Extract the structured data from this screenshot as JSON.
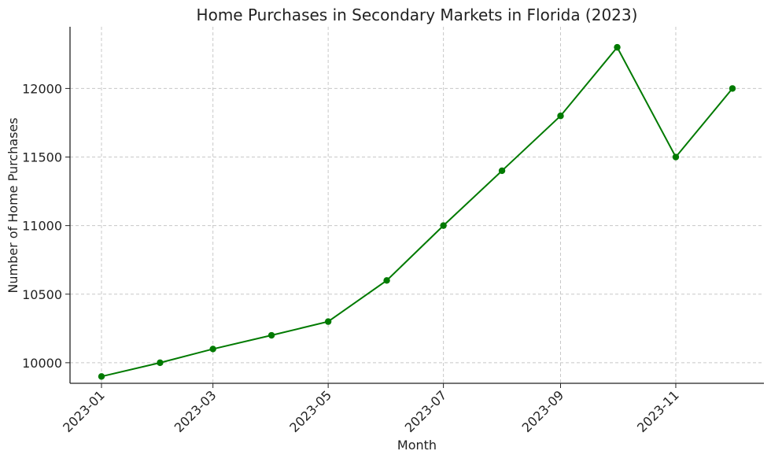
{
  "chart_data": {
    "type": "line",
    "title": "Home Purchases in Secondary Markets in Florida (2023)",
    "xlabel": "Month",
    "ylabel": "Number of Home Purchases",
    "x": [
      "2023-01-01",
      "2023-02-01",
      "2023-03-01",
      "2023-04-01",
      "2023-05-01",
      "2023-06-01",
      "2023-07-01",
      "2023-08-01",
      "2023-09-01",
      "2023-10-01",
      "2023-11-01",
      "2023-12-01"
    ],
    "x_tick_labels": [
      "2023-01",
      "2023-03",
      "2023-05",
      "2023-07",
      "2023-09",
      "2023-11"
    ],
    "y_ticks": [
      10000,
      10500,
      11000,
      11500,
      12000
    ],
    "y_tick_labels": [
      "10000",
      "10500",
      "11000",
      "11500",
      "12000"
    ],
    "ylim": [
      9850,
      12450
    ],
    "grid": true,
    "series": [
      {
        "values": [
          9900,
          10000,
          10100,
          10200,
          10300,
          10600,
          11000,
          11400,
          11800,
          12300,
          11500,
          12000
        ],
        "color": "#007a00",
        "marker": "circle"
      }
    ]
  }
}
